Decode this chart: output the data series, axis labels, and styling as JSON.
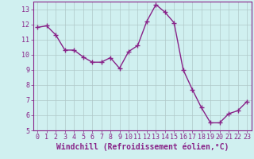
{
  "x": [
    0,
    1,
    2,
    3,
    4,
    5,
    6,
    7,
    8,
    9,
    10,
    11,
    12,
    13,
    14,
    15,
    16,
    17,
    18,
    19,
    20,
    21,
    22,
    23
  ],
  "y": [
    11.8,
    11.9,
    11.3,
    10.3,
    10.3,
    9.85,
    9.5,
    9.5,
    9.8,
    9.1,
    10.2,
    10.6,
    12.2,
    13.3,
    12.8,
    12.1,
    9.0,
    7.7,
    6.5,
    5.5,
    5.5,
    6.1,
    6.3,
    6.9
  ],
  "line_color": "#882288",
  "marker": "+",
  "markersize": 4,
  "linewidth": 1.0,
  "xlabel": "Windchill (Refroidissement éolien,°C)",
  "xlabel_fontsize": 7,
  "ylim": [
    5,
    13.5
  ],
  "xlim": [
    -0.5,
    23.5
  ],
  "yticks": [
    5,
    6,
    7,
    8,
    9,
    10,
    11,
    12,
    13
  ],
  "xticks": [
    0,
    1,
    2,
    3,
    4,
    5,
    6,
    7,
    8,
    9,
    10,
    11,
    12,
    13,
    14,
    15,
    16,
    17,
    18,
    19,
    20,
    21,
    22,
    23
  ],
  "bg_color": "#d0f0f0",
  "grid_color": "#b0c8c8",
  "tick_color": "#882288",
  "tick_fontsize": 6,
  "spine_color": "#882288"
}
